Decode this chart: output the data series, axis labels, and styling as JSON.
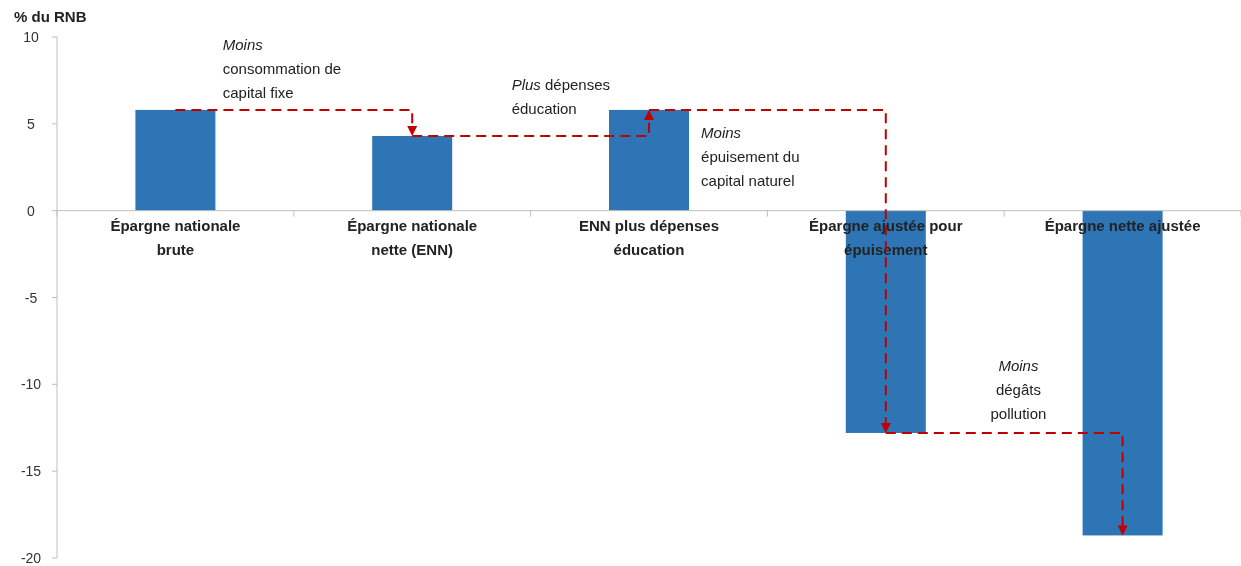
{
  "chart_data": {
    "type": "bar",
    "ylabel": "% du RNB",
    "categories": [
      "Épargne nationale\nbrute",
      "Épargne nationale\nnette (ENN)",
      "ENN plus dépenses\néducation",
      "Épargne ajustée pour\népuisement",
      "Épargne nette ajustée"
    ],
    "values": [
      5.8,
      4.3,
      5.8,
      -12.8,
      -18.7
    ],
    "color": "#2e75b6",
    "ylim": [
      -20,
      10
    ],
    "yticks": [
      -20,
      -15,
      -10,
      -5,
      0,
      5,
      10
    ],
    "grid": false,
    "annotations": [
      "Moins\nconsommation de\ncapital fixe",
      "Plus dépenses\néducation",
      "Moins\népuisement du\ncapital naturel",
      "Moins\ndégâts\npollution"
    ]
  }
}
